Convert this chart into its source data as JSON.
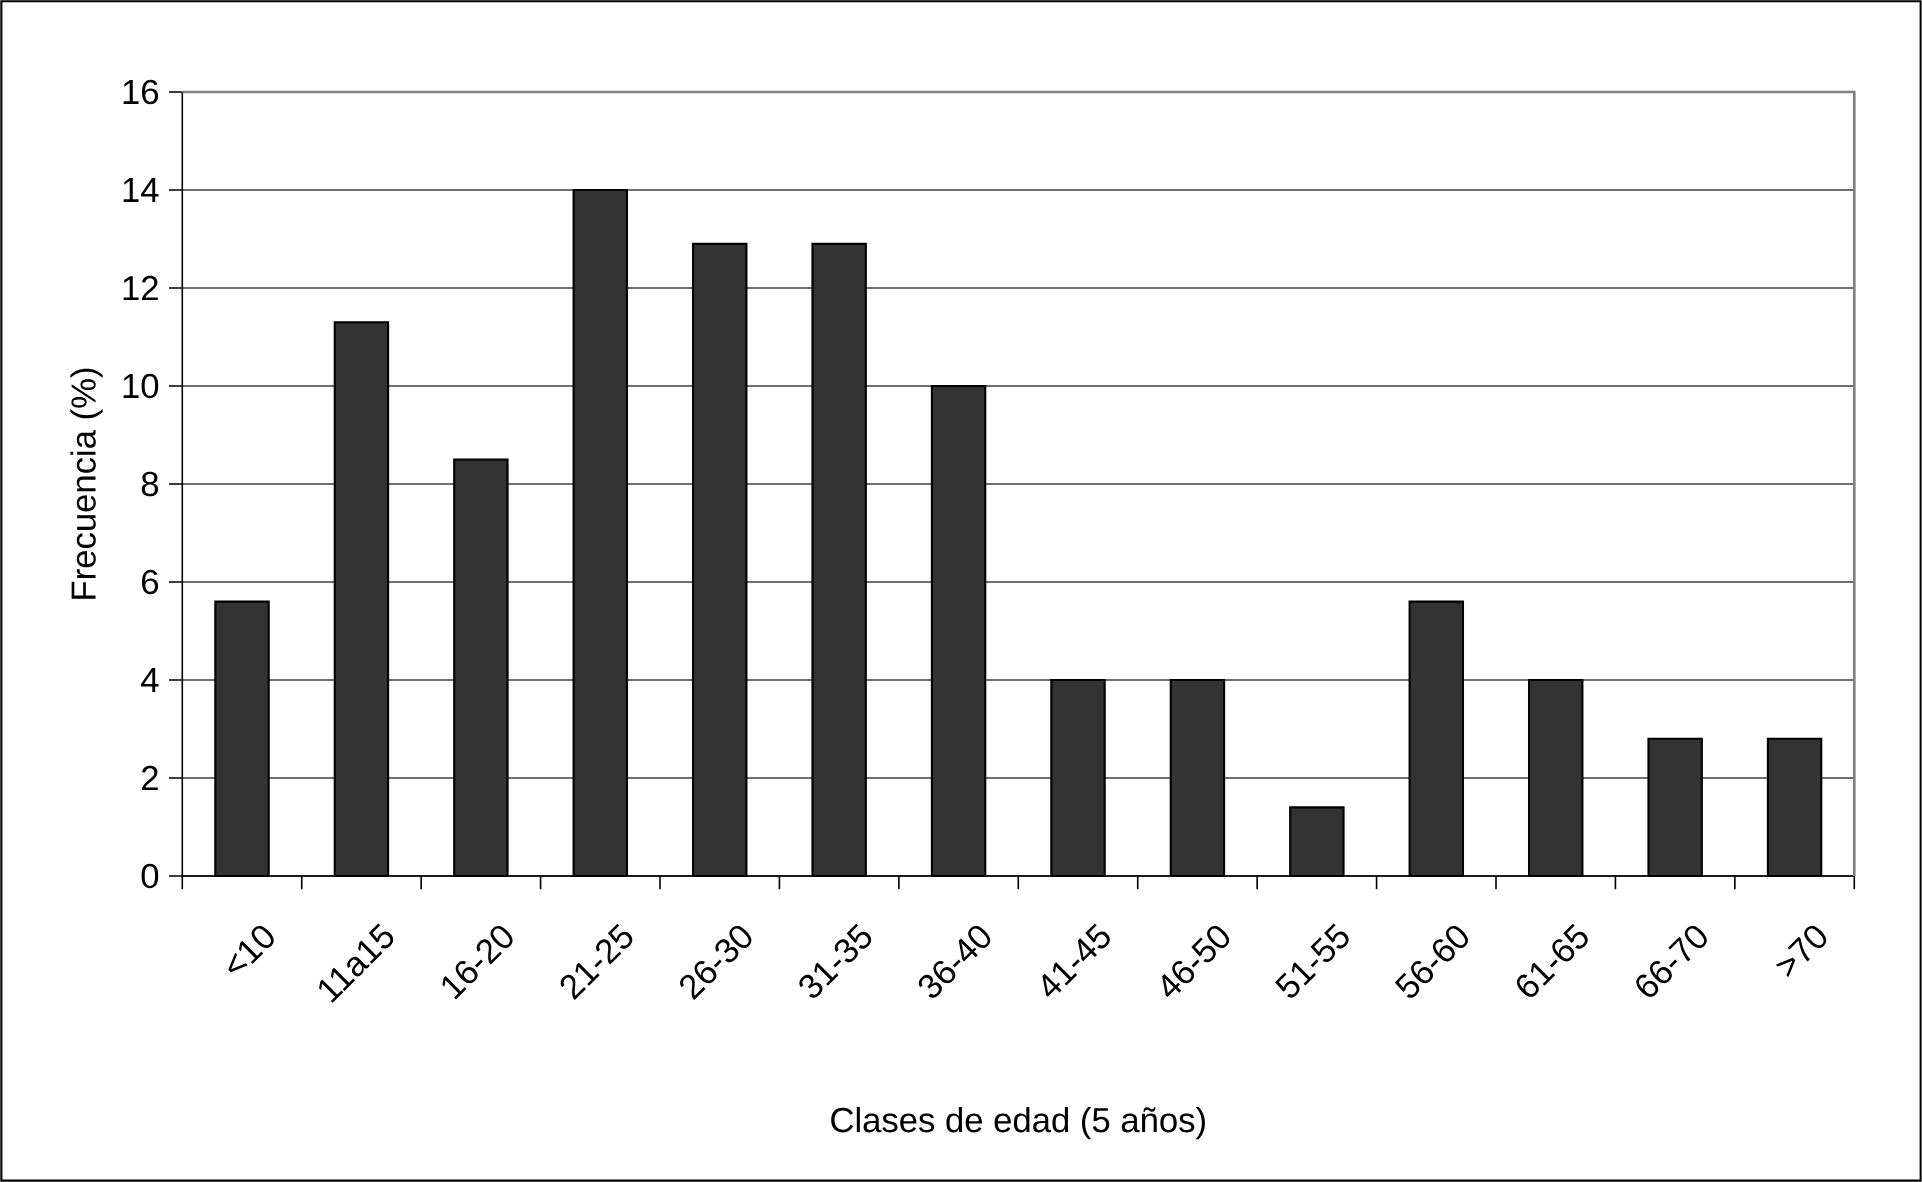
{
  "chart_data": {
    "type": "bar",
    "xlabel": "Clases de edad (5 años)",
    "ylabel": "Frecuencia (%)",
    "categories": [
      "<10",
      "11a15",
      "16-20",
      "21-25",
      "26-30",
      "31-35",
      "36-40",
      "41-45",
      "46-50",
      "51-55",
      "56-60",
      "61-65",
      "66-70",
      ">70"
    ],
    "values": [
      5.6,
      11.3,
      8.5,
      14,
      12.9,
      12.9,
      10,
      4,
      4,
      1.4,
      5.6,
      4,
      2.8,
      2.8
    ],
    "color": "#333333",
    "ylim": [
      0,
      16
    ],
    "yticks": [
      0,
      2,
      4,
      6,
      8,
      10,
      12,
      14,
      16
    ],
    "grid": "y"
  }
}
